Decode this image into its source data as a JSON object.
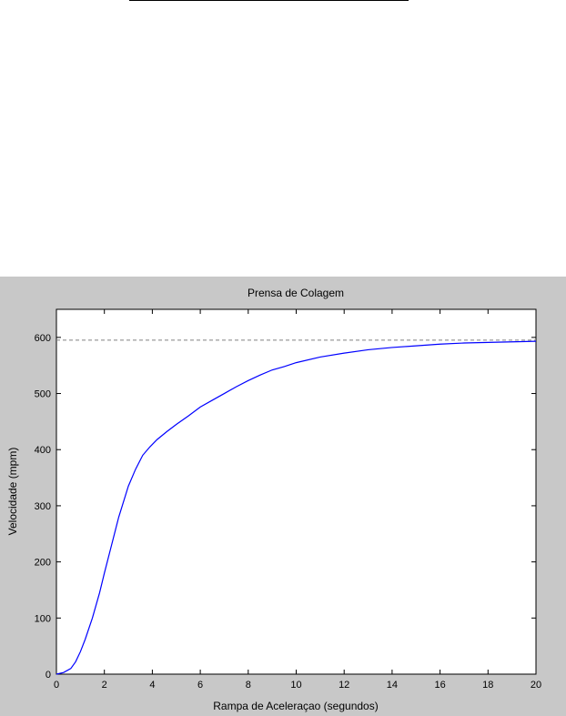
{
  "chart_data": {
    "type": "line",
    "title": "Prensa de Colagem",
    "xlabel": "Rampa de Aceleraçao (segundos)",
    "ylabel": "Velocidade (mpm)",
    "xlim": [
      0,
      20
    ],
    "ylim": [
      0,
      650
    ],
    "xticks": [
      0,
      2,
      4,
      6,
      8,
      10,
      12,
      14,
      16,
      18,
      20
    ],
    "yticks": [
      0,
      100,
      200,
      300,
      400,
      500,
      600
    ],
    "grid": false,
    "reference_line": {
      "y": 595,
      "style": "dashed",
      "color": "#808080"
    },
    "series": [
      {
        "color": "#0000ff",
        "x": [
          0,
          0.3,
          0.6,
          0.8,
          1.0,
          1.2,
          1.5,
          1.8,
          2.0,
          2.3,
          2.6,
          3.0,
          3.3,
          3.6,
          3.9,
          4.2,
          4.6,
          5.0,
          5.5,
          6.0,
          6.5,
          7.0,
          7.5,
          8.0,
          8.5,
          9.0,
          9.5,
          10.0,
          11.0,
          12.0,
          13.0,
          14.0,
          15.0,
          16.0,
          17.0,
          18.0,
          19.0,
          20.0
        ],
        "y": [
          0,
          3,
          10,
          22,
          40,
          62,
          100,
          145,
          180,
          230,
          280,
          335,
          365,
          390,
          405,
          418,
          432,
          445,
          460,
          476,
          488,
          500,
          512,
          523,
          533,
          542,
          548,
          555,
          565,
          572,
          578,
          582,
          585,
          588,
          590,
          591,
          592,
          593
        ]
      }
    ]
  }
}
